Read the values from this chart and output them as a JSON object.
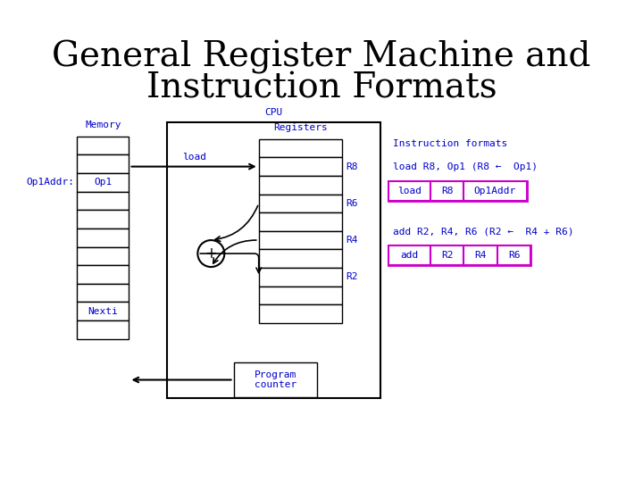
{
  "title_line1": "General Register Machine and",
  "title_line2": "Instruction Formats",
  "title_fontsize": 28,
  "title_font": "serif",
  "bg_color": "#ffffff",
  "cpu_label": "CPU",
  "memory_label": "Memory",
  "registers_label": "Registers",
  "program_counter_label": "Program\ncounter",
  "nexti_label": "Nexti",
  "op1addr_label": "Op1Addr:",
  "op1_label": "Op1",
  "load_label": "load",
  "register_labels": [
    "R8",
    "R6",
    "R4",
    "R2"
  ],
  "diagram_color": "#0000cc",
  "box_outline": "#000000",
  "magenta_color": "#cc00cc",
  "instr_formats_label": "Instruction formats",
  "load_instr_desc": "load R8, Op1 (R8 ←  Op1)",
  "add_instr_desc": "add R2, R4, R6 (R2 ←  R4 + R6)",
  "load_boxes": [
    "load",
    "R8",
    "Op1Addr"
  ],
  "add_boxes": [
    "add",
    "R2",
    "R4",
    "R6"
  ],
  "diagram_font_size": 9,
  "label_font_size": 8
}
